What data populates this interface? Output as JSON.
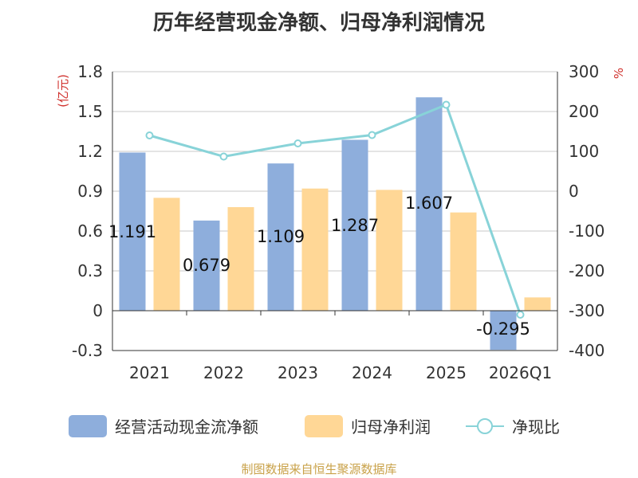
{
  "title": "历年经营现金净额、归母净利润情况",
  "footer": "制图数据来自恒生聚源数据库",
  "colors": {
    "bar1": "#8eaedc",
    "bar2": "#ffd796",
    "line": "#88d3d8",
    "unit": "#d0312d",
    "footer": "#c9a24a"
  },
  "chart_data": {
    "type": "bar",
    "categories": [
      "2021",
      "2022",
      "2023",
      "2024",
      "2025",
      "2026Q1"
    ],
    "y_left": {
      "label": "(亿元)",
      "min": -0.3,
      "max": 1.8,
      "ticks": [
        "1.8",
        "1.5",
        "1.2",
        "0.9",
        "0.6",
        "0.3",
        "0",
        "-0.3"
      ],
      "tick_values": [
        1.8,
        1.5,
        1.2,
        0.9,
        0.6,
        0.3,
        0,
        -0.3
      ]
    },
    "y_right": {
      "label": "%",
      "min": -400,
      "max": 300,
      "ticks": [
        "300",
        "200",
        "100",
        "0",
        "-100",
        "-200",
        "-300",
        "-400"
      ],
      "tick_values": [
        300,
        200,
        100,
        0,
        -100,
        -200,
        -300,
        -400
      ]
    },
    "series": [
      {
        "name": "经营活动现金流净额",
        "kind": "bar",
        "axis": "left",
        "values": [
          1.191,
          0.679,
          1.109,
          1.287,
          1.607,
          -0.295
        ],
        "labels": [
          "1.191",
          "0.679",
          "1.109",
          "1.287",
          "1.607",
          "-0.295"
        ]
      },
      {
        "name": "归母净利润",
        "kind": "bar",
        "axis": "left",
        "values": [
          0.85,
          0.78,
          0.92,
          0.91,
          0.74,
          0.1
        ]
      },
      {
        "name": "净现比",
        "kind": "line",
        "axis": "right",
        "values": [
          140,
          87,
          120,
          141,
          217,
          -310
        ]
      }
    ],
    "grid": true,
    "legend_position": "bottom"
  }
}
